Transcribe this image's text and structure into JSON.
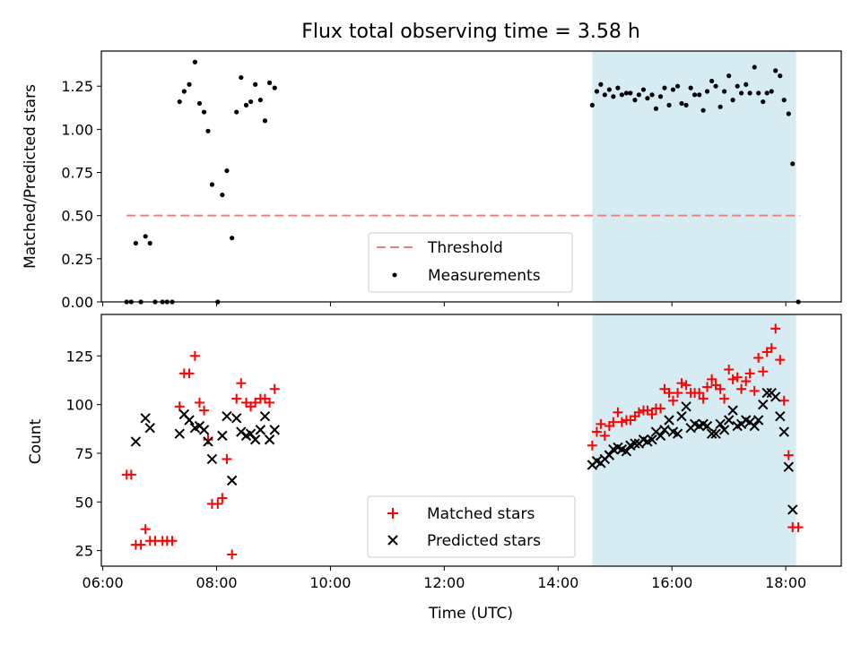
{
  "title": "Flux total observing time = 3.58 h",
  "colors": {
    "threshold": "#f08080",
    "measurement": "#000000",
    "matched": "#ff0000",
    "predicted": "#000000",
    "highlight": "#add8e6"
  },
  "chart_data": [
    {
      "type": "scatter",
      "panel": "top",
      "ylabel": "Matched/Predicted stars",
      "xlabel": "",
      "xlim": [
        "06:00",
        "19:00"
      ],
      "ylim": [
        0,
        1.45
      ],
      "x_unit": "hours since 00:00 UTC",
      "xticks": [
        6,
        8,
        10,
        12,
        14,
        16,
        18
      ],
      "xtick_labels": [
        "06:00",
        "08:00",
        "10:00",
        "12:00",
        "14:00",
        "16:00",
        "18:00"
      ],
      "yticks": [
        0,
        0.25,
        0.5,
        0.75,
        1.0,
        1.25
      ],
      "ytick_labels": [
        "0.00",
        "0.25",
        "0.50",
        "0.75",
        "1.00",
        "1.25"
      ],
      "show_xtick_labels": false,
      "highlight_x": [
        14.6,
        18.18
      ],
      "threshold": {
        "name": "Threshold",
        "y": 0.5,
        "x": [
          6.42,
          18.25
        ]
      },
      "legend": {
        "position": "lower center",
        "entries": [
          "Threshold",
          "Measurements"
        ]
      },
      "series": [
        {
          "name": "Measurements",
          "marker": "dot",
          "points": [
            [
              6.42,
              0.0
            ],
            [
              6.5,
              0.0
            ],
            [
              6.58,
              0.34
            ],
            [
              6.67,
              0.0
            ],
            [
              6.75,
              0.38
            ],
            [
              6.83,
              0.34
            ],
            [
              6.92,
              0.0
            ],
            [
              7.05,
              0.0
            ],
            [
              7.13,
              0.0
            ],
            [
              7.22,
              0.0
            ],
            [
              7.35,
              1.16
            ],
            [
              7.43,
              1.22
            ],
            [
              7.52,
              1.26
            ],
            [
              7.62,
              1.39
            ],
            [
              7.7,
              1.15
            ],
            [
              7.78,
              1.1
            ],
            [
              7.85,
              0.99
            ],
            [
              7.92,
              0.68
            ],
            [
              8.02,
              0.0
            ],
            [
              8.1,
              0.62
            ],
            [
              8.18,
              0.76
            ],
            [
              8.27,
              0.37
            ],
            [
              8.35,
              1.1
            ],
            [
              8.43,
              1.3
            ],
            [
              8.52,
              1.14
            ],
            [
              8.6,
              1.16
            ],
            [
              8.68,
              1.26
            ],
            [
              8.77,
              1.17
            ],
            [
              8.85,
              1.05
            ],
            [
              8.93,
              1.27
            ],
            [
              9.02,
              1.24
            ],
            [
              14.6,
              1.14
            ],
            [
              14.68,
              1.22
            ],
            [
              14.75,
              1.26
            ],
            [
              14.82,
              1.2
            ],
            [
              14.9,
              1.23
            ],
            [
              14.97,
              1.19
            ],
            [
              15.05,
              1.24
            ],
            [
              15.12,
              1.2
            ],
            [
              15.2,
              1.21
            ],
            [
              15.27,
              1.21
            ],
            [
              15.35,
              1.17
            ],
            [
              15.42,
              1.2
            ],
            [
              15.5,
              1.23
            ],
            [
              15.57,
              1.18
            ],
            [
              15.65,
              1.2
            ],
            [
              15.72,
              1.12
            ],
            [
              15.8,
              1.19
            ],
            [
              15.87,
              1.24
            ],
            [
              15.95,
              1.14
            ],
            [
              16.02,
              1.23
            ],
            [
              16.1,
              1.25
            ],
            [
              16.17,
              1.15
            ],
            [
              16.25,
              1.14
            ],
            [
              16.33,
              1.24
            ],
            [
              16.4,
              1.2
            ],
            [
              16.48,
              1.2
            ],
            [
              16.55,
              1.11
            ],
            [
              16.62,
              1.22
            ],
            [
              16.7,
              1.28
            ],
            [
              16.77,
              1.25
            ],
            [
              16.85,
              1.13
            ],
            [
              16.92,
              1.22
            ],
            [
              17.0,
              1.31
            ],
            [
              17.07,
              1.17
            ],
            [
              17.15,
              1.25
            ],
            [
              17.22,
              1.21
            ],
            [
              17.3,
              1.26
            ],
            [
              17.37,
              1.21
            ],
            [
              17.45,
              1.36
            ],
            [
              17.52,
              1.21
            ],
            [
              17.6,
              1.16
            ],
            [
              17.67,
              1.21
            ],
            [
              17.75,
              1.22
            ],
            [
              17.82,
              1.34
            ],
            [
              17.9,
              1.31
            ],
            [
              17.97,
              1.17
            ],
            [
              18.05,
              1.09
            ],
            [
              18.12,
              0.8
            ],
            [
              18.22,
              0.0
            ]
          ]
        }
      ]
    },
    {
      "type": "scatter",
      "panel": "bottom",
      "ylabel": "Count",
      "xlabel": "Time (UTC)",
      "xlim": [
        "06:00",
        "19:00"
      ],
      "ylim": [
        17,
        146
      ],
      "x_unit": "hours since 00:00 UTC",
      "xticks": [
        6,
        8,
        10,
        12,
        14,
        16,
        18
      ],
      "xtick_labels": [
        "06:00",
        "08:00",
        "10:00",
        "12:00",
        "14:00",
        "16:00",
        "18:00"
      ],
      "yticks": [
        25,
        50,
        75,
        100,
        125
      ],
      "ytick_labels": [
        "25",
        "50",
        "75",
        "100",
        "125"
      ],
      "show_xtick_labels": true,
      "highlight_x": [
        14.6,
        18.18
      ],
      "legend": {
        "position": "lower center",
        "entries": [
          "Matched stars",
          "Predicted stars"
        ]
      },
      "series": [
        {
          "name": "Matched stars",
          "marker": "plus",
          "points": [
            [
              6.42,
              64
            ],
            [
              6.5,
              64
            ],
            [
              6.58,
              28
            ],
            [
              6.67,
              28
            ],
            [
              6.75,
              36
            ],
            [
              6.83,
              30
            ],
            [
              6.92,
              30
            ],
            [
              7.05,
              30
            ],
            [
              7.13,
              30
            ],
            [
              7.22,
              30
            ],
            [
              7.35,
              99
            ],
            [
              7.43,
              116
            ],
            [
              7.52,
              116
            ],
            [
              7.62,
              125
            ],
            [
              7.7,
              101
            ],
            [
              7.78,
              97
            ],
            [
              7.85,
              82
            ],
            [
              7.92,
              49
            ],
            [
              8.02,
              49
            ],
            [
              8.1,
              52
            ],
            [
              8.18,
              72
            ],
            [
              8.27,
              23
            ],
            [
              8.35,
              103
            ],
            [
              8.43,
              111
            ],
            [
              8.52,
              101
            ],
            [
              8.6,
              99
            ],
            [
              8.68,
              101
            ],
            [
              8.77,
              103
            ],
            [
              8.85,
              103
            ],
            [
              8.93,
              101
            ],
            [
              9.02,
              108
            ],
            [
              14.6,
              79
            ],
            [
              14.68,
              86
            ],
            [
              14.75,
              90
            ],
            [
              14.82,
              84
            ],
            [
              14.9,
              89
            ],
            [
              14.97,
              91
            ],
            [
              15.05,
              96
            ],
            [
              15.12,
              91
            ],
            [
              15.2,
              92
            ],
            [
              15.27,
              92
            ],
            [
              15.35,
              94
            ],
            [
              15.42,
              96
            ],
            [
              15.5,
              97
            ],
            [
              15.57,
              97
            ],
            [
              15.65,
              95
            ],
            [
              15.72,
              98
            ],
            [
              15.8,
              98
            ],
            [
              15.87,
              108
            ],
            [
              15.95,
              106
            ],
            [
              16.02,
              102
            ],
            [
              16.1,
              106
            ],
            [
              16.17,
              111
            ],
            [
              16.25,
              110
            ],
            [
              16.33,
              106
            ],
            [
              16.4,
              106
            ],
            [
              16.48,
              106
            ],
            [
              16.55,
              103
            ],
            [
              16.62,
              109
            ],
            [
              16.7,
              113
            ],
            [
              16.77,
              110
            ],
            [
              16.85,
              108
            ],
            [
              16.92,
              103
            ],
            [
              17.0,
              118
            ],
            [
              17.07,
              113
            ],
            [
              17.15,
              114
            ],
            [
              17.22,
              108
            ],
            [
              17.3,
              112
            ],
            [
              17.37,
              116
            ],
            [
              17.45,
              107
            ],
            [
              17.52,
              124
            ],
            [
              17.6,
              117
            ],
            [
              17.67,
              127
            ],
            [
              17.75,
              129
            ],
            [
              17.82,
              139
            ],
            [
              17.9,
              123
            ],
            [
              17.97,
              102
            ],
            [
              18.05,
              74
            ],
            [
              18.12,
              37
            ],
            [
              18.22,
              37
            ]
          ]
        },
        {
          "name": "Predicted stars",
          "marker": "x",
          "points": [
            [
              6.58,
              81
            ],
            [
              6.75,
              93
            ],
            [
              6.83,
              88
            ],
            [
              7.35,
              85
            ],
            [
              7.43,
              95
            ],
            [
              7.52,
              92
            ],
            [
              7.62,
              88
            ],
            [
              7.7,
              89
            ],
            [
              7.78,
              87
            ],
            [
              7.85,
              81
            ],
            [
              7.92,
              72
            ],
            [
              8.1,
              84
            ],
            [
              8.18,
              94
            ],
            [
              8.27,
              61
            ],
            [
              8.35,
              93
            ],
            [
              8.43,
              86
            ],
            [
              8.52,
              84
            ],
            [
              8.6,
              85
            ],
            [
              8.68,
              82
            ],
            [
              8.77,
              87
            ],
            [
              8.85,
              94
            ],
            [
              8.93,
              82
            ],
            [
              9.02,
              87
            ],
            [
              14.6,
              69
            ],
            [
              14.68,
              71
            ],
            [
              14.75,
              70
            ],
            [
              14.82,
              72
            ],
            [
              14.9,
              74
            ],
            [
              14.97,
              77
            ],
            [
              15.05,
              78
            ],
            [
              15.12,
              77
            ],
            [
              15.2,
              76
            ],
            [
              15.27,
              79
            ],
            [
              15.35,
              80
            ],
            [
              15.42,
              80
            ],
            [
              15.5,
              82
            ],
            [
              15.57,
              81
            ],
            [
              15.65,
              82
            ],
            [
              15.72,
              86
            ],
            [
              15.8,
              84
            ],
            [
              15.87,
              87
            ],
            [
              15.95,
              92
            ],
            [
              16.02,
              86
            ],
            [
              16.1,
              85
            ],
            [
              16.17,
              94
            ],
            [
              16.25,
              99
            ],
            [
              16.33,
              88
            ],
            [
              16.4,
              90
            ],
            [
              16.48,
              89
            ],
            [
              16.55,
              90
            ],
            [
              16.62,
              89
            ],
            [
              16.7,
              85
            ],
            [
              16.77,
              85
            ],
            [
              16.85,
              90
            ],
            [
              16.92,
              87
            ],
            [
              17.0,
              92
            ],
            [
              17.07,
              97
            ],
            [
              17.15,
              89
            ],
            [
              17.22,
              90
            ],
            [
              17.3,
              92
            ],
            [
              17.37,
              91
            ],
            [
              17.45,
              89
            ],
            [
              17.52,
              92
            ],
            [
              17.6,
              100
            ],
            [
              17.67,
              106
            ],
            [
              17.75,
              106
            ],
            [
              17.82,
              104
            ],
            [
              17.9,
              94
            ],
            [
              17.97,
              86
            ],
            [
              18.05,
              68
            ],
            [
              18.12,
              46
            ]
          ]
        }
      ]
    }
  ]
}
